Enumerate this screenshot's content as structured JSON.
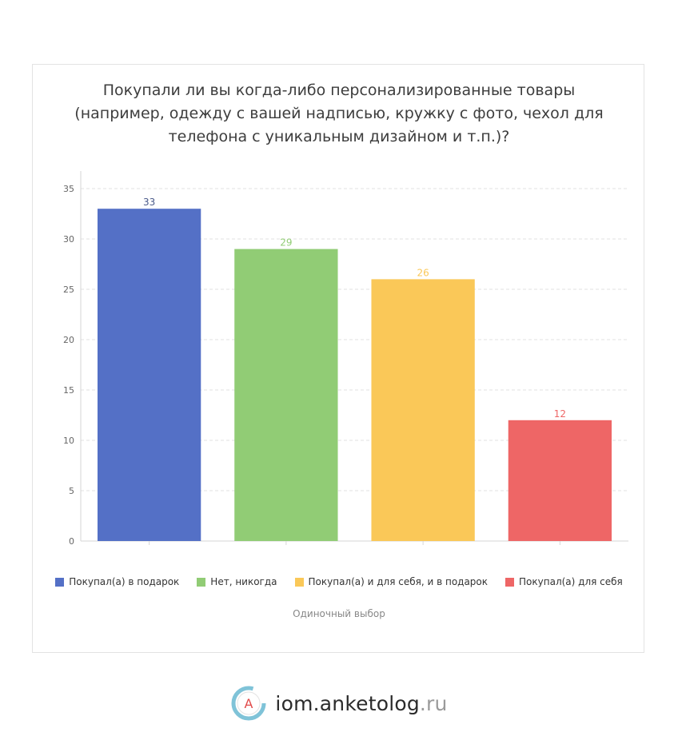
{
  "chart_data": {
    "type": "bar",
    "title": "Покупали ли вы когда-либо персонализированные товары (например, одежду с вашей надписью, кружку с фото, чехол для телефона с уникальным дизайном и т.п.)?",
    "categories": [
      "Покупал(а) в подарок",
      "Нет, никогда",
      "Покупал(а) и для себя, и в подарок",
      "Покупал(а) для себя"
    ],
    "values": [
      33,
      29,
      26,
      12
    ],
    "colors": [
      "#5470c6",
      "#91cc75",
      "#fac858",
      "#ee6666"
    ],
    "yticks": [
      0,
      5,
      10,
      15,
      20,
      25,
      30,
      35
    ],
    "ylim": [
      0,
      35
    ],
    "grid": true,
    "legend_position": "bottom",
    "note": "Одиночный выбор"
  },
  "footer": {
    "brand_main": "iom.anketolog",
    "brand_tld": ".ru",
    "logo_letter": "A",
    "logo_icon": "anketolog-logo-icon"
  }
}
